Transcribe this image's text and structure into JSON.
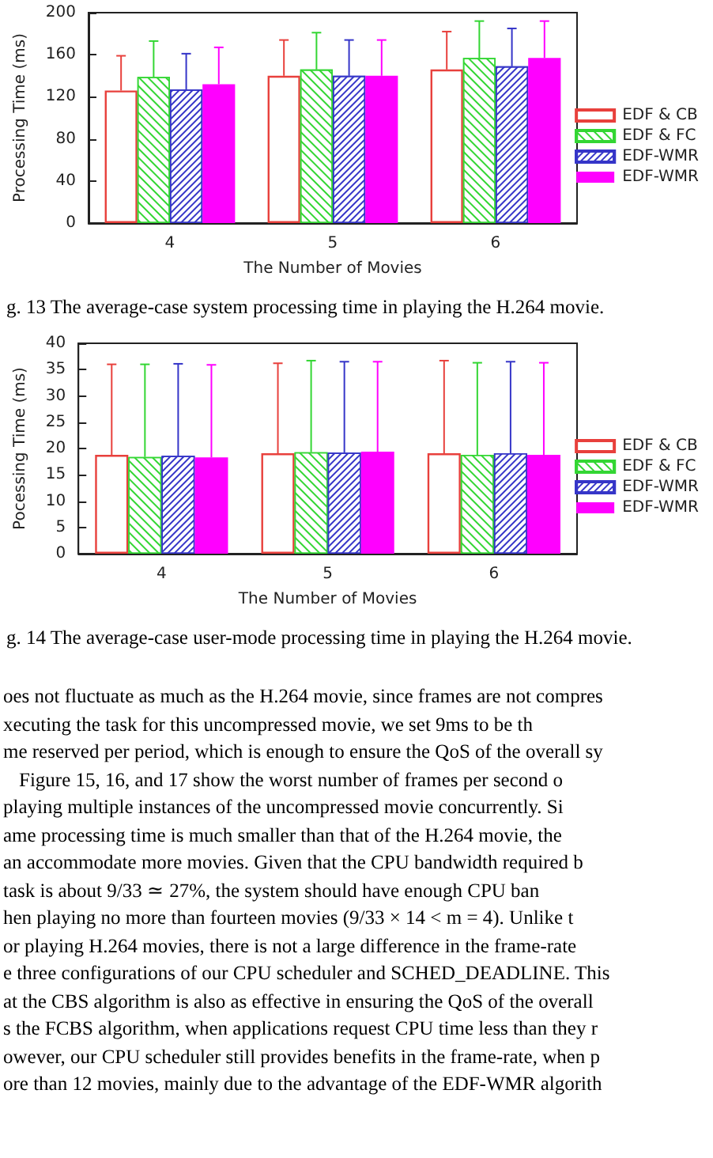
{
  "chart_data": [
    {
      "type": "bar",
      "xlabel": "The Number of Movies",
      "ylabel": "Processing Time (ms)",
      "categories": [
        "4",
        "5",
        "6"
      ],
      "ylim": [
        0,
        200
      ],
      "yticks": [
        0,
        40,
        80,
        120,
        160,
        200
      ],
      "grid": false,
      "legend": "right",
      "annotations": [
        "g. 13 The average-case system processing time in playing the H.264 movie."
      ],
      "series": [
        {
          "name": "EDF & CB",
          "color": "#e8403c",
          "values": [
            126,
            140,
            146
          ],
          "errors": [
            [
              126,
              159
            ],
            [
              140,
              174
            ],
            [
              146,
              182
            ]
          ]
        },
        {
          "name": "EDF & FC",
          "color": "#33d633",
          "values": [
            139,
            146,
            157
          ],
          "errors": [
            [
              139,
              173
            ],
            [
              146,
              181
            ],
            [
              157,
              192
            ]
          ]
        },
        {
          "name": "EDF-WMR",
          "color": "#3535c8",
          "values": [
            127,
            140,
            149
          ],
          "errors": [
            [
              127,
              161
            ],
            [
              140,
              174
            ],
            [
              149,
              185
            ]
          ]
        },
        {
          "name": "EDF-WMR",
          "color": "#ff00ff",
          "values": [
            132,
            140,
            157
          ],
          "errors": [
            [
              132,
              167
            ],
            [
              140,
              174
            ],
            [
              157,
              192
            ]
          ]
        }
      ]
    },
    {
      "type": "bar",
      "xlabel": "The Number of Movies",
      "ylabel": "Pocessing Time (ms)",
      "categories": [
        "4",
        "5",
        "6"
      ],
      "ylim": [
        0,
        40
      ],
      "yticks": [
        0,
        5,
        10,
        15,
        20,
        25,
        30,
        35,
        40
      ],
      "grid": false,
      "legend": "right",
      "annotations": [
        "g. 14 The average-case user-mode processing time in playing the H.264 movie."
      ],
      "series": [
        {
          "name": "EDF & CB",
          "color": "#e8403c",
          "values": [
            18.8,
            19.1,
            19.1
          ],
          "errors": [
            [
              18.8,
              36
            ],
            [
              19.1,
              36.2
            ],
            [
              19.1,
              36.7
            ]
          ]
        },
        {
          "name": "EDF & FC",
          "color": "#33d633",
          "values": [
            18.4,
            19.3,
            18.8
          ],
          "errors": [
            [
              18.4,
              36
            ],
            [
              19.3,
              36.7
            ],
            [
              18.8,
              36.3
            ]
          ]
        },
        {
          "name": "EDF-WMR",
          "color": "#3535c8",
          "values": [
            18.6,
            19.2,
            19.1
          ],
          "errors": [
            [
              18.6,
              36.1
            ],
            [
              19.2,
              36.5
            ],
            [
              19.1,
              36.5
            ]
          ]
        },
        {
          "name": "EDF-WMR",
          "color": "#ff00ff",
          "values": [
            18.3,
            19.4,
            18.8
          ],
          "errors": [
            [
              18.3,
              35.9
            ],
            [
              19.4,
              36.5
            ],
            [
              18.8,
              36.3
            ]
          ]
        }
      ]
    },
    {
      "type": "other",
      "annotations": [
        "oes not fluctuate as much as the H.264 movie, since frames are not compres",
        "xecuting the task for this uncompressed movie, we set 9ms to be th",
        "me reserved per period, which is enough to ensure the QoS of the overall sy",
        "Figure 15, 16, and 17 show the worst number of frames per second o",
        "playing multiple instances of the uncompressed movie concurrently. Si",
        "ame processing time is much smaller than that of the H.264 movie, the",
        "an accommodate more movies. Given that the CPU bandwidth required b",
        "task is about 9/33 ≃ 27%, the system should have enough CPU ban",
        "hen playing no more than fourteen movies (9/33 × 14 < m = 4). Unlike t",
        "or playing H.264 movies, there is not a large difference in the frame-rate",
        "e three configurations of our CPU scheduler and SCHED_DEADLINE. This",
        "at the CBS algorithm is also as effective in ensuring the QoS of the overall",
        "s the FCBS algorithm, when applications request CPU time less than they r",
        "owever, our CPU scheduler still provides benefits in the frame-rate, when p",
        "ore than 12 movies, mainly due to the advantage of the EDF-WMR algorith"
      ]
    }
  ]
}
